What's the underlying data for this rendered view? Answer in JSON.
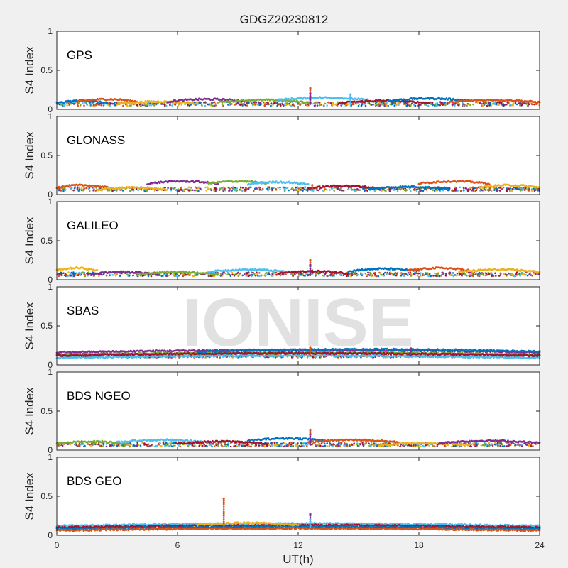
{
  "figure": {
    "title": "GDGZ20230812",
    "xlabel": "UT(h)",
    "watermark": "IONISE"
  },
  "chart_data": {
    "type": "scatter",
    "title": "GDGZ20230812",
    "xlabel": "UT(h)",
    "ylabel": "S4 Index",
    "xlim": [
      0,
      24
    ],
    "xticks": [
      0,
      6,
      12,
      18,
      24
    ],
    "ylim": [
      0,
      1
    ],
    "yticks": [
      0,
      0.5,
      1
    ],
    "grid": false,
    "colors": [
      "#0072BD",
      "#D95319",
      "#EDB120",
      "#7E2F8E",
      "#77AC30",
      "#4DBEEE",
      "#A2142F"
    ],
    "panels": [
      {
        "label": "GPS",
        "baseline": 0.07,
        "spikes": [
          {
            "x": 12.6,
            "y": 0.27
          },
          {
            "x": 12.6,
            "y": 0.2
          },
          {
            "x": 14.6,
            "y": 0.19
          }
        ],
        "arcs": [
          {
            "x0": 0.0,
            "x1": 2.5,
            "y": 0.08
          },
          {
            "x0": 1.0,
            "x1": 4.0,
            "y": 0.1
          },
          {
            "x0": 3.0,
            "x1": 7.0,
            "y": 0.07
          },
          {
            "x0": 5.5,
            "x1": 9.5,
            "y": 0.1
          },
          {
            "x0": 8.0,
            "x1": 12.5,
            "y": 0.09
          },
          {
            "x0": 11.0,
            "x1": 15.5,
            "y": 0.12
          },
          {
            "x0": 14.0,
            "x1": 18.5,
            "y": 0.08
          },
          {
            "x0": 16.5,
            "x1": 20.5,
            "y": 0.11
          },
          {
            "x0": 19.5,
            "x1": 24.0,
            "y": 0.09
          }
        ]
      },
      {
        "label": "GLONASS",
        "baseline": 0.07,
        "spikes": [
          {
            "x": 12.7,
            "y": 0.12
          }
        ],
        "arcs": [
          {
            "x0": 0.0,
            "x1": 2.5,
            "y": 0.09
          },
          {
            "x0": 2.0,
            "x1": 5.5,
            "y": 0.06
          },
          {
            "x0": 4.5,
            "x1": 8.0,
            "y": 0.14
          },
          {
            "x0": 7.5,
            "x1": 10.5,
            "y": 0.14
          },
          {
            "x0": 9.5,
            "x1": 12.5,
            "y": 0.13
          },
          {
            "x0": 12.5,
            "x1": 16.0,
            "y": 0.08
          },
          {
            "x0": 15.5,
            "x1": 19.5,
            "y": 0.07
          },
          {
            "x0": 18.0,
            "x1": 21.5,
            "y": 0.14
          },
          {
            "x0": 21.0,
            "x1": 24.0,
            "y": 0.09
          }
        ]
      },
      {
        "label": "GALILEO",
        "baseline": 0.07,
        "spikes": [
          {
            "x": 12.6,
            "y": 0.25
          },
          {
            "x": 12.6,
            "y": 0.19
          }
        ],
        "arcs": [
          {
            "x0": 0.0,
            "x1": 2.0,
            "y": 0.12
          },
          {
            "x0": 1.5,
            "x1": 5.0,
            "y": 0.07
          },
          {
            "x0": 4.0,
            "x1": 8.0,
            "y": 0.07
          },
          {
            "x0": 7.5,
            "x1": 11.5,
            "y": 0.1
          },
          {
            "x0": 11.0,
            "x1": 14.5,
            "y": 0.08
          },
          {
            "x0": 14.5,
            "x1": 18.0,
            "y": 0.11
          },
          {
            "x0": 17.5,
            "x1": 20.5,
            "y": 0.12
          },
          {
            "x0": 20.0,
            "x1": 24.0,
            "y": 0.1
          }
        ]
      },
      {
        "label": "SBAS",
        "baseline": 0.12,
        "spikes": [
          {
            "x": 12.6,
            "y": 0.22
          },
          {
            "x": 17.6,
            "y": 0.21
          }
        ],
        "arcs": [
          {
            "x0": 0.0,
            "x1": 24.0,
            "y": 0.16
          },
          {
            "x0": 0.0,
            "x1": 24.0,
            "y": 0.13
          },
          {
            "x0": 0.0,
            "x1": 24.0,
            "y": 0.09
          },
          {
            "x0": 0.0,
            "x1": 24.0,
            "y": 0.12
          },
          {
            "x0": 7.0,
            "x1": 24.0,
            "y": 0.17
          }
        ]
      },
      {
        "label": "BDS NGEO",
        "baseline": 0.07,
        "spikes": [
          {
            "x": 12.6,
            "y": 0.26
          },
          {
            "x": 12.6,
            "y": 0.2
          }
        ],
        "arcs": [
          {
            "x0": 0.0,
            "x1": 3.5,
            "y": 0.08
          },
          {
            "x0": 3.0,
            "x1": 7.5,
            "y": 0.1
          },
          {
            "x0": 6.0,
            "x1": 10.5,
            "y": 0.08
          },
          {
            "x0": 9.5,
            "x1": 13.5,
            "y": 0.12
          },
          {
            "x0": 12.5,
            "x1": 17.0,
            "y": 0.1
          },
          {
            "x0": 16.0,
            "x1": 20.5,
            "y": 0.06
          },
          {
            "x0": 19.0,
            "x1": 24.0,
            "y": 0.09
          }
        ]
      },
      {
        "label": "BDS GEO",
        "baseline": 0.1,
        "spikes": [
          {
            "x": 8.3,
            "y": 0.47
          },
          {
            "x": 12.6,
            "y": 0.27
          },
          {
            "x": 12.6,
            "y": 0.2
          }
        ],
        "arcs": [
          {
            "x0": 0.0,
            "x1": 24.0,
            "y": 0.12
          },
          {
            "x0": 0.0,
            "x1": 24.0,
            "y": 0.1
          },
          {
            "x0": 0.0,
            "x1": 24.0,
            "y": 0.08
          },
          {
            "x0": 0.0,
            "x1": 24.0,
            "y": 0.06
          },
          {
            "x0": 7.0,
            "x1": 12.0,
            "y": 0.13
          }
        ]
      }
    ]
  }
}
